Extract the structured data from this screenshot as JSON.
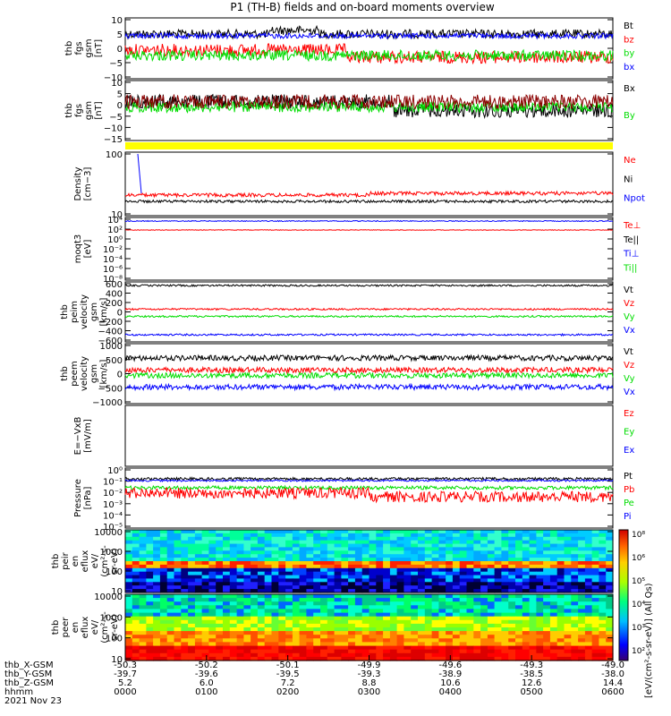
{
  "title": "P1 (TH-B) fields and on-board moments overview",
  "colors": {
    "black": "#000000",
    "red": "#ff0000",
    "green": "#00dd00",
    "blue": "#0000ff",
    "yellow": "#ffff00",
    "darkred": "#8b0000"
  },
  "time_ticks": [
    "0000",
    "0100",
    "0200",
    "0300",
    "0400",
    "0500",
    "0600"
  ],
  "x_gsm": [
    "-50.3",
    "-50.2",
    "-50.1",
    "-49.9",
    "-49.6",
    "-49.3",
    "-49.0"
  ],
  "y_gsm": [
    "-39.7",
    "-39.6",
    "-39.5",
    "-39.3",
    "-38.9",
    "-38.5",
    "-38.0"
  ],
  "z_gsm": [
    "5.2",
    "6.0",
    "7.2",
    "8.8",
    "10.6",
    "12.6",
    "14.4"
  ],
  "row_labels": [
    "thb_X-GSM",
    "thb_Y-GSM",
    "thb_Z-GSM",
    "hhmm",
    "2021 Nov 23"
  ],
  "colorbar": {
    "ticks": [
      "10⁸",
      "10⁶",
      "10⁵",
      "10⁴",
      "10³",
      "10²"
    ],
    "label": "[eV/(cm²-s-sr-eV)] (All Qs)"
  },
  "chart_data": [
    {
      "type": "line",
      "ylabel": [
        "thb",
        "fgs",
        "gsm",
        "[nT]"
      ],
      "yticks": [
        "10",
        "5",
        "0",
        "−5",
        "−10"
      ],
      "ylim": [
        -10,
        10
      ],
      "legend": [
        {
          "name": "Bt",
          "color": "black"
        },
        {
          "name": "bz",
          "color": "red"
        },
        {
          "name": "by",
          "color": "green"
        },
        {
          "name": "bx",
          "color": "blue"
        }
      ]
    },
    {
      "type": "line",
      "ylabel": [
        "thb",
        "fgs",
        "gsm",
        "[nT]"
      ],
      "yticks": [
        "10",
        "5",
        "0",
        "−5",
        "−10",
        "−15"
      ],
      "ylim": [
        -17,
        10
      ],
      "legend": [
        {
          "name": "Bx",
          "color": "black"
        },
        {
          "name": "By",
          "color": "green"
        }
      ]
    },
    {
      "type": "line",
      "ylabel": [
        "Density",
        "[cm−3]"
      ],
      "yticks": [
        "100",
        "10"
      ],
      "ylim": [
        2,
        200
      ],
      "log": true,
      "legend": [
        {
          "name": "Ne",
          "color": "red"
        },
        {
          "name": "Ni",
          "color": "black"
        },
        {
          "name": "Npot",
          "color": "blue"
        }
      ]
    },
    {
      "type": "line",
      "ylabel": [
        "moqt3",
        "[eV]"
      ],
      "yticks": [
        "10⁴",
        "10²",
        "10⁰",
        "10⁻²",
        "10⁻⁴",
        "10⁻⁶",
        "10⁻⁸"
      ],
      "ylim": [
        -8,
        4
      ],
      "log": true,
      "legend": [
        {
          "name": "Te⊥",
          "color": "red"
        },
        {
          "name": "Te||",
          "color": "black"
        },
        {
          "name": "Ti⊥",
          "color": "blue"
        },
        {
          "name": "Ti||",
          "color": "green"
        }
      ]
    },
    {
      "type": "line",
      "ylabel": [
        "thb",
        "peim",
        "velocity",
        "gsm",
        "[km/s]"
      ],
      "yticks": [
        "600",
        "400",
        "200",
        "0",
        "−200",
        "−400",
        "−600"
      ],
      "ylim": [
        -600,
        600
      ],
      "legend": [
        {
          "name": "Vt",
          "color": "black"
        },
        {
          "name": "Vz",
          "color": "red"
        },
        {
          "name": "Vy",
          "color": "green"
        },
        {
          "name": "Vx",
          "color": "blue"
        }
      ]
    },
    {
      "type": "line",
      "ylabel": [
        "thb",
        "peem",
        "velocity",
        "gsm",
        "[km/s]"
      ],
      "yticks": [
        "1000",
        "500",
        "0",
        "−500",
        "−1000"
      ],
      "ylim": [
        -1000,
        1000
      ],
      "legend": [
        {
          "name": "Vt",
          "color": "black"
        },
        {
          "name": "Vz",
          "color": "red"
        },
        {
          "name": "Vy",
          "color": "green"
        },
        {
          "name": "Vx",
          "color": "blue"
        }
      ]
    },
    {
      "type": "line",
      "ylabel": [
        "E=−VxB",
        "[mV/m]"
      ],
      "yticks": [],
      "ylim": [
        -1,
        1
      ],
      "legend": [
        {
          "name": "Ez",
          "color": "red"
        },
        {
          "name": "Ey",
          "color": "green"
        },
        {
          "name": "Ex",
          "color": "blue"
        }
      ]
    },
    {
      "type": "line",
      "ylabel": [
        "Pressure",
        "[nPa]"
      ],
      "yticks": [
        "10⁰",
        "10⁻¹",
        "10⁻²",
        "10⁻³",
        "10⁻⁴",
        "10⁻⁵"
      ],
      "ylim": [
        -5,
        0
      ],
      "log": true,
      "legend": [
        {
          "name": "Pt",
          "color": "black"
        },
        {
          "name": "Pb",
          "color": "red"
        },
        {
          "name": "Pe",
          "color": "green"
        },
        {
          "name": "Pi",
          "color": "blue"
        }
      ]
    },
    {
      "type": "heatmap",
      "ylabel": [
        "thb",
        "peir",
        "en",
        "eflux",
        "eV/",
        "(cm²-s-",
        "sr-eV)"
      ],
      "yticks": [
        "10000",
        "1000",
        "100",
        "10"
      ],
      "ylim": [
        5,
        30000
      ],
      "log": true
    },
    {
      "type": "heatmap",
      "ylabel": [
        "thb",
        "peer",
        "en",
        "eflux",
        "eV/",
        "(cm²-s-",
        "sr-eV)"
      ],
      "yticks": [
        "10000",
        "1000",
        "100",
        "10"
      ],
      "ylim": [
        5,
        30000
      ],
      "log": true
    }
  ]
}
